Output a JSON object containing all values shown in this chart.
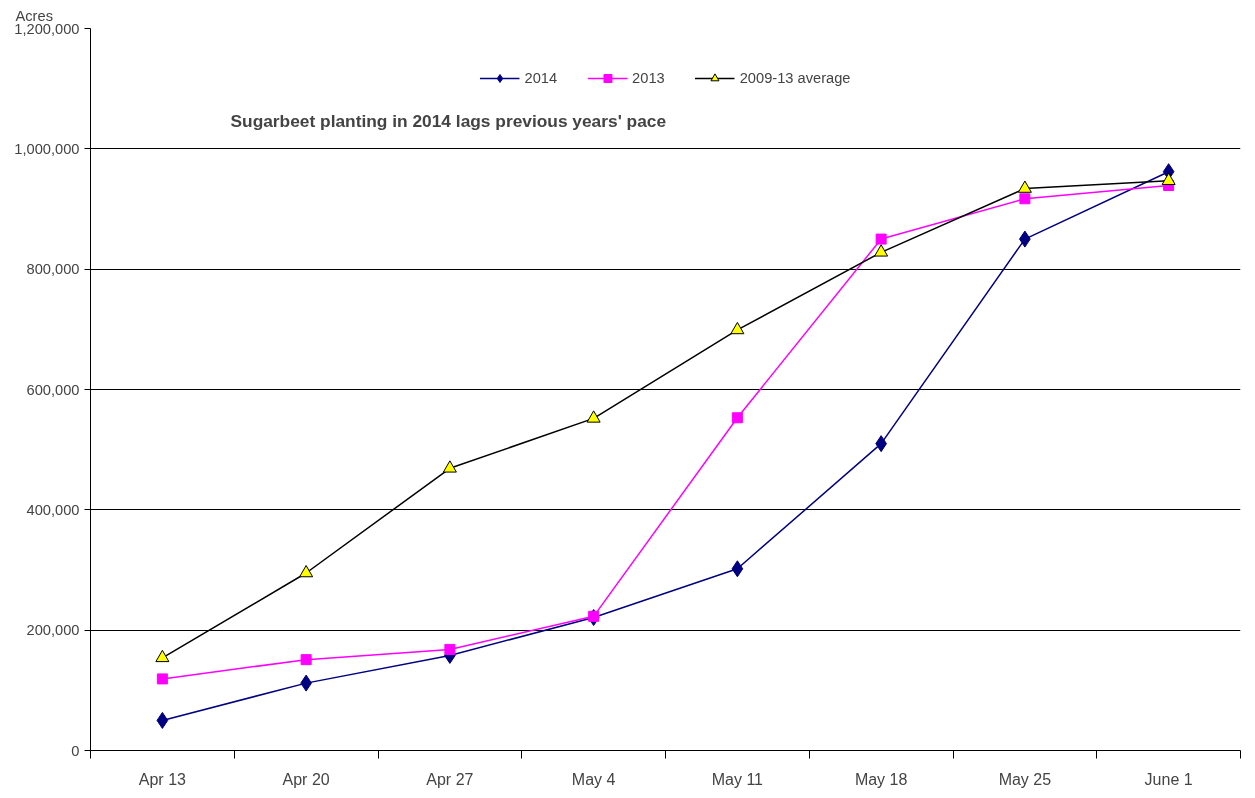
{
  "chart_data": {
    "type": "line",
    "title": "Sugarbeet planting in 2014 lags previous years' pace",
    "ylabel": "Acres",
    "categories": [
      "Apr 13",
      "Apr 20",
      "Apr 27",
      "May 4",
      "May 11",
      "May 18",
      "May 25",
      "June 1"
    ],
    "series": [
      {
        "name": "2014",
        "color": "#000080",
        "marker": "diamond",
        "values": [
          50000,
          112000,
          158000,
          221000,
          302000,
          510000,
          850000,
          962000
        ]
      },
      {
        "name": "2013",
        "color": "#ff00ff",
        "marker": "square",
        "values": [
          119000,
          151000,
          168000,
          223000,
          553000,
          850000,
          917000,
          939000
        ]
      },
      {
        "name": "2009-13 average",
        "color": "#000000",
        "marker": "triangle",
        "values": [
          154000,
          295000,
          469000,
          552000,
          699000,
          828000,
          934000,
          947000
        ]
      }
    ],
    "ylim": [
      0,
      1200000
    ],
    "yticks": [
      {
        "value": 0,
        "label": "0"
      },
      {
        "value": 200000,
        "label": "200,000"
      },
      {
        "value": 400000,
        "label": "400,000"
      },
      {
        "value": 600000,
        "label": "600,000"
      },
      {
        "value": 800000,
        "label": "800,000"
      },
      {
        "value": 1000000,
        "label": "1,000,000"
      },
      {
        "value": 1200000,
        "label": "1,200,000"
      }
    ],
    "grid": "y",
    "legend": "top",
    "line_style": "solid"
  }
}
